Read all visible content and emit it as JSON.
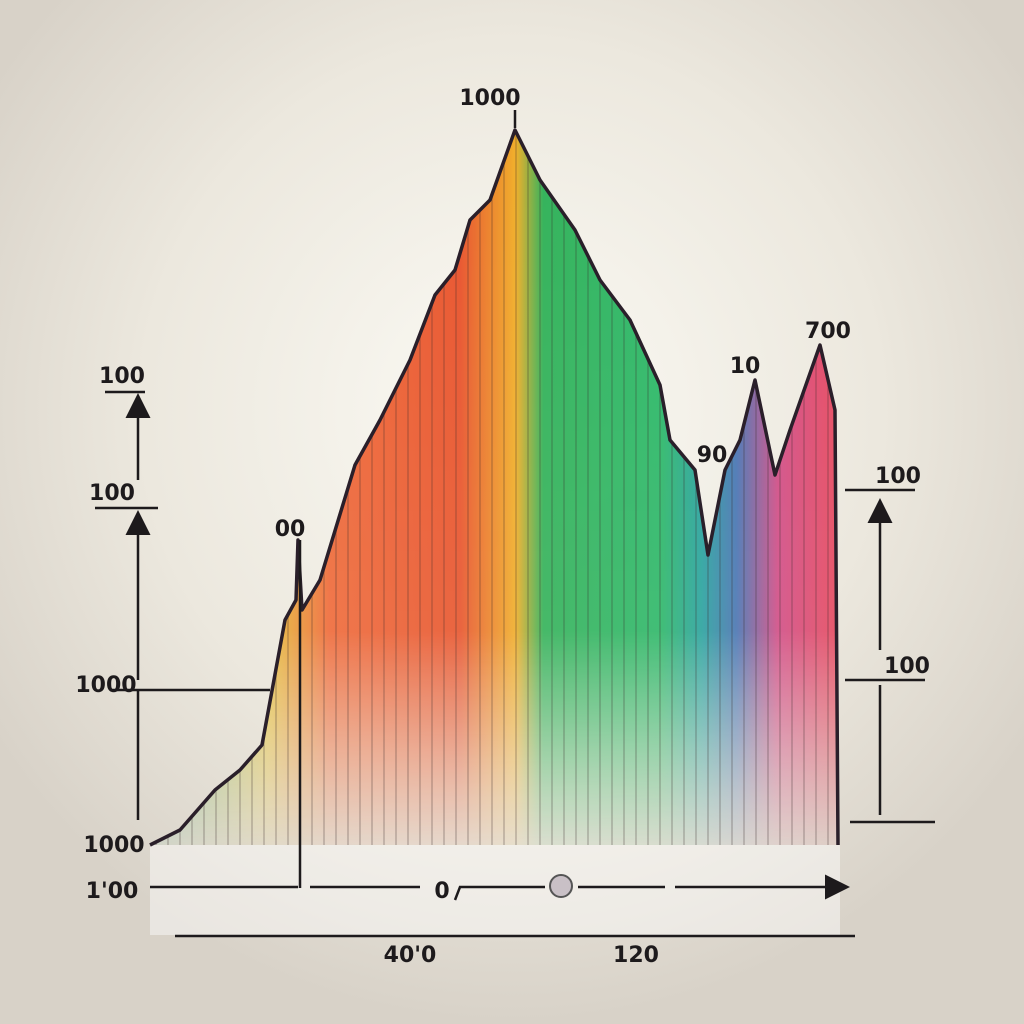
{
  "labels": {
    "peak": "1000",
    "right_peak": "700",
    "mid_peak": "10",
    "left_top": "100",
    "left_second": "100",
    "left_third": "1000",
    "left_bottom": "1000",
    "left_base": "1'00",
    "right_top": "100",
    "right_mid": "100",
    "bottom_left": "40'0",
    "bottom_right": "120",
    "base_zero": "0",
    "small_left": "00",
    "small_right": "90"
  }
}
